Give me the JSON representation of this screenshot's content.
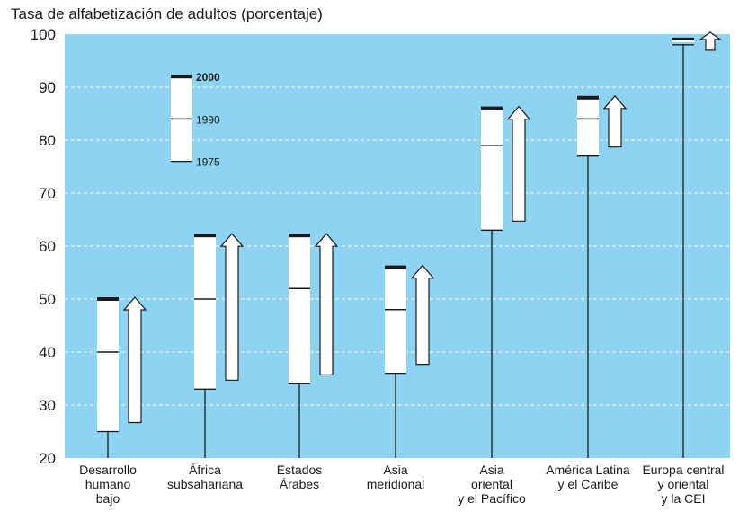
{
  "chart_data": {
    "type": "box-range",
    "title": "Tasa de alfabetización de adultos (porcentaje)",
    "xlabel": "",
    "ylabel": "",
    "ylim": [
      20,
      100
    ],
    "yticks": [
      20,
      30,
      40,
      50,
      60,
      70,
      80,
      90,
      100
    ],
    "grid": true,
    "background": "#8fd3f2",
    "series_labels": [
      "2000",
      "1990",
      "1975"
    ],
    "categories": [
      {
        "label": [
          "Desarrollo",
          "humano",
          "bajo"
        ],
        "y1975": 25,
        "y1990": 40,
        "y2000": 50
      },
      {
        "label": [
          "África",
          "subsahariana"
        ],
        "y1975": 33,
        "y1990": 50,
        "y2000": 62
      },
      {
        "label": [
          "Estados",
          "Árabes"
        ],
        "y1975": 34,
        "y1990": 52,
        "y2000": 62
      },
      {
        "label": [
          "Asia",
          "meridional"
        ],
        "y1975": 36,
        "y1990": 48,
        "y2000": 56
      },
      {
        "label": [
          "Asia",
          "oriental",
          "y el Pacífico"
        ],
        "y1975": 63,
        "y1990": 79,
        "y2000": 86
      },
      {
        "label": [
          "América Latina",
          "y el Caribe"
        ],
        "y1975": 77,
        "y1990": 84,
        "y2000": 88
      },
      {
        "label": [
          "Europa central",
          "y oriental",
          "y la CEI"
        ],
        "y1975": 98,
        "y1990": 98,
        "y2000": 99
      }
    ],
    "legend_example": {
      "y1975": 76,
      "y1990": 84,
      "y2000": 92
    }
  }
}
